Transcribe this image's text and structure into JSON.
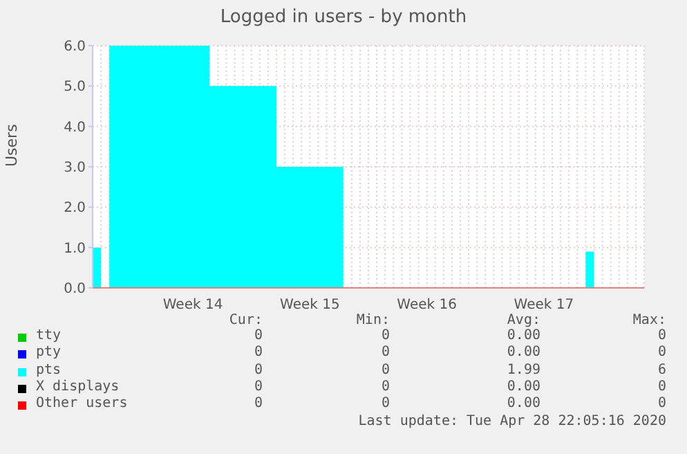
{
  "chart_data": {
    "type": "area",
    "title": "Logged in users - by month",
    "ylabel": "Users",
    "categories": [
      null,
      null,
      null,
      null,
      null,
      null,
      null,
      null,
      null,
      null,
      null,
      null,
      "Week 14",
      null,
      null,
      null,
      null,
      null,
      null,
      null,
      null,
      null,
      null,
      null,
      null,
      null,
      "Week 15",
      null,
      null,
      null,
      null,
      null,
      null,
      null,
      null,
      null,
      null,
      null,
      null,
      null,
      "Week 16",
      null,
      null,
      null,
      null,
      null,
      null,
      null,
      null,
      null,
      null,
      null,
      null,
      null,
      "Week 17",
      null,
      null,
      null,
      null,
      null,
      null,
      null,
      null,
      null,
      null,
      null,
      null
    ],
    "ylim": [
      0,
      6
    ],
    "yticks": [
      {
        "value": 0,
        "label": "0.0"
      },
      {
        "value": 1,
        "label": "1.0"
      },
      {
        "value": 2,
        "label": "2.0"
      },
      {
        "value": 3,
        "label": "3.0"
      },
      {
        "value": 4,
        "label": "4.0"
      },
      {
        "value": 5,
        "label": "5.0"
      },
      {
        "value": 6,
        "label": "6.0"
      }
    ],
    "grid": true,
    "legend": "bottom",
    "series": [
      {
        "name": "tty",
        "color": "#00cc00",
        "values": [
          null,
          null,
          null,
          null,
          null,
          null,
          null,
          null,
          null,
          null,
          null,
          null,
          null,
          null,
          null,
          null,
          null,
          null,
          null,
          null,
          null,
          null,
          null,
          null,
          null,
          null,
          null,
          null,
          null,
          null,
          null,
          null,
          null,
          null,
          null,
          null,
          null,
          null,
          null,
          null,
          null,
          null,
          null,
          null,
          null,
          null,
          null,
          null,
          null,
          null,
          null,
          null,
          null,
          null,
          null,
          null,
          null,
          null,
          null,
          null,
          null,
          null,
          null,
          null,
          null,
          null,
          null
        ]
      },
      {
        "name": "pty",
        "color": "#0000ff",
        "values": [
          null,
          null,
          null,
          null,
          null,
          null,
          null,
          null,
          null,
          null,
          null,
          null,
          null,
          null,
          null,
          null,
          null,
          null,
          null,
          null,
          null,
          null,
          null,
          null,
          null,
          null,
          null,
          null,
          null,
          null,
          null,
          null,
          null,
          null,
          null,
          null,
          null,
          null,
          null,
          null,
          null,
          null,
          null,
          null,
          null,
          null,
          null,
          null,
          null,
          null,
          null,
          null,
          null,
          null,
          null,
          null,
          null,
          null,
          null,
          null,
          null,
          null,
          null,
          null,
          null,
          null,
          null
        ]
      },
      {
        "name": "pts",
        "color": "#00ffff",
        "values": [
          1,
          0,
          6,
          6,
          6,
          6,
          6,
          6,
          6,
          6,
          6,
          6,
          6,
          6,
          5,
          5,
          5,
          5,
          5,
          5,
          5,
          5,
          3,
          3,
          3,
          3,
          3,
          3,
          3,
          3,
          0,
          0,
          0,
          0,
          0,
          0,
          0,
          0,
          0,
          0,
          0,
          0,
          0,
          0,
          0,
          0,
          0,
          0,
          0,
          0,
          0,
          0,
          0,
          0,
          0,
          0,
          0,
          0,
          0,
          0.9,
          0,
          0,
          0,
          0,
          0,
          0,
          0
        ]
      },
      {
        "name": "X displays",
        "color": "#000000",
        "values": [
          null,
          null,
          null,
          null,
          null,
          null,
          null,
          null,
          null,
          null,
          null,
          null,
          null,
          null,
          null,
          null,
          null,
          null,
          null,
          null,
          null,
          null,
          null,
          null,
          null,
          null,
          null,
          null,
          null,
          null,
          null,
          null,
          null,
          null,
          null,
          null,
          null,
          null,
          null,
          null,
          null,
          null,
          null,
          null,
          null,
          null,
          null,
          null,
          null,
          null,
          null,
          null,
          null,
          null,
          null,
          null,
          null,
          null,
          null,
          null,
          null,
          null,
          null,
          null,
          null,
          null,
          null
        ]
      },
      {
        "name": "Other users",
        "color": "#ff0000",
        "values": [
          null,
          null,
          null,
          null,
          null,
          null,
          null,
          null,
          null,
          null,
          null,
          null,
          null,
          null,
          null,
          null,
          null,
          null,
          null,
          null,
          null,
          null,
          null,
          null,
          null,
          null,
          null,
          null,
          null,
          null,
          null,
          null,
          null,
          null,
          null,
          null,
          null,
          null,
          null,
          null,
          null,
          null,
          null,
          null,
          null,
          null,
          null,
          null,
          null,
          null,
          null,
          null,
          null,
          null,
          null,
          null,
          null,
          null,
          null,
          null,
          null,
          null,
          null,
          null,
          null,
          null,
          null
        ]
      }
    ],
    "annotations": [
      "Cur:",
      "Min:",
      "Avg:",
      "Max:",
      "0",
      "0",
      "0.00",
      "0",
      "0",
      "0",
      "0.00",
      "0",
      "0",
      "0",
      "1.99",
      "6",
      "0",
      "0",
      "0.00",
      "0",
      "0",
      "0",
      "0.00",
      "0",
      "Last update: Tue Apr 28 22:05:16 2020"
    ]
  }
}
